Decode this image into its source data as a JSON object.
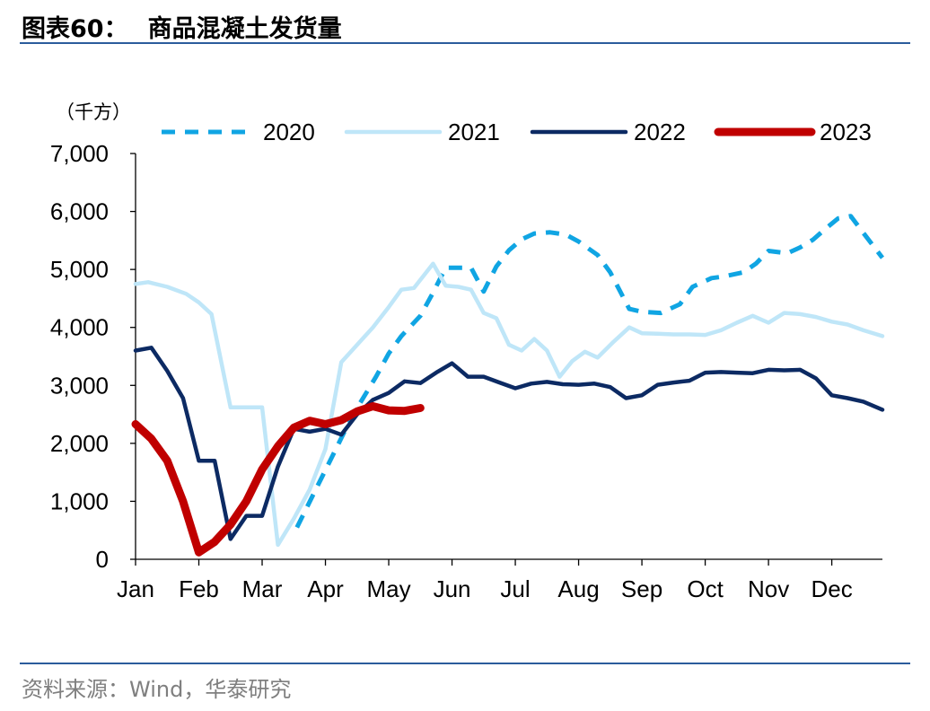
{
  "header": {
    "figure_no": "图表60：",
    "title": "商品混凝土发货量"
  },
  "footer": {
    "source": "资料来源：Wind，华泰研究"
  },
  "colors": {
    "s2020": "#10a5e3",
    "s2021": "#bfe6f8",
    "s2022": "#0c2a63",
    "s2023": "#c00000",
    "rule": "#2b5c9c"
  },
  "chart_data": {
    "type": "line",
    "unit_label": "（千方）",
    "title": "商品混凝土发货量",
    "xlabel": "",
    "ylabel": "",
    "ylim": [
      0,
      7000
    ],
    "yticks": [
      0,
      1000,
      2000,
      3000,
      4000,
      5000,
      6000,
      7000
    ],
    "ytick_labels": [
      "0",
      "1,000",
      "2,000",
      "3,000",
      "4,000",
      "5,000",
      "6,000",
      "7,000"
    ],
    "x_axis": "month",
    "xlim": [
      1,
      12.8
    ],
    "months": [
      "Jan",
      "Feb",
      "Mar",
      "Apr",
      "May",
      "Jun",
      "Jul",
      "Aug",
      "Sep",
      "Oct",
      "Nov",
      "Dec"
    ],
    "legend_position": "top",
    "grid": false,
    "series": [
      {
        "name": "2020",
        "style": "dashed",
        "x": [
          1.7,
          2.0,
          2.5,
          2.8,
          3.1,
          3.3,
          3.55,
          3.8,
          4.05,
          4.3,
          4.55,
          4.8,
          5.0,
          5.2,
          5.5,
          5.7,
          5.9,
          6.1,
          6.3,
          6.5,
          6.7,
          6.9,
          7.1,
          7.3,
          7.55,
          7.8,
          8.0,
          8.3,
          8.5,
          8.8,
          9.0,
          9.3,
          9.6,
          9.8,
          10.1,
          10.3,
          10.6,
          10.8,
          11.0,
          11.3,
          11.5,
          11.7,
          11.9,
          12.1,
          12.3,
          12.5,
          12.8
        ],
        "y": [
          null,
          null,
          null,
          null,
          null,
          null,
          550,
          1100,
          1650,
          2200,
          2700,
          3150,
          3550,
          3850,
          4200,
          4600,
          5030,
          5030,
          5030,
          4620,
          5050,
          5330,
          5520,
          5620,
          5640,
          5600,
          5480,
          5250,
          4950,
          4320,
          4270,
          4250,
          4400,
          4700,
          4850,
          4880,
          4950,
          5100,
          5320,
          5280,
          5380,
          5510,
          5700,
          5880,
          5920,
          5630,
          5200
        ]
      },
      {
        "name": "2021",
        "style": "solid",
        "x": [
          1.0,
          1.2,
          1.5,
          1.8,
          2.0,
          2.2,
          2.5,
          2.75,
          3.0,
          3.25,
          3.5,
          3.75,
          4.0,
          4.25,
          4.5,
          4.75,
          5.0,
          5.2,
          5.4,
          5.7,
          5.9,
          6.1,
          6.3,
          6.5,
          6.7,
          6.9,
          7.1,
          7.3,
          7.5,
          7.7,
          7.9,
          8.1,
          8.3,
          8.55,
          8.8,
          9.0,
          9.25,
          9.5,
          9.75,
          10.0,
          10.25,
          10.5,
          10.75,
          11.0,
          11.25,
          11.5,
          11.75,
          12.0,
          12.25,
          12.5,
          12.8
        ],
        "y": [
          4750,
          4780,
          4700,
          4580,
          4430,
          4230,
          2620,
          2620,
          2620,
          250,
          700,
          1200,
          1900,
          3400,
          3700,
          4000,
          4350,
          4650,
          4680,
          5100,
          4720,
          4700,
          4650,
          4250,
          4160,
          3700,
          3600,
          3800,
          3600,
          3150,
          3420,
          3580,
          3480,
          3750,
          4000,
          3900,
          3890,
          3880,
          3880,
          3870,
          3950,
          4080,
          4200,
          4080,
          4250,
          4230,
          4180,
          4100,
          4050,
          3950,
          3850
        ]
      },
      {
        "name": "2022",
        "style": "solid",
        "x": [
          1.0,
          1.25,
          1.5,
          1.75,
          2.0,
          2.25,
          2.5,
          2.75,
          3.0,
          3.25,
          3.5,
          3.75,
          4.0,
          4.25,
          4.5,
          4.75,
          5.0,
          5.25,
          5.5,
          5.75,
          6.0,
          6.25,
          6.5,
          6.75,
          7.0,
          7.25,
          7.5,
          7.75,
          8.0,
          8.25,
          8.5,
          8.75,
          9.0,
          9.25,
          9.5,
          9.75,
          10.0,
          10.25,
          10.5,
          10.75,
          11.0,
          11.25,
          11.5,
          11.75,
          12.0,
          12.25,
          12.5,
          12.8
        ],
        "y": [
          3600,
          3650,
          3250,
          2780,
          1700,
          1700,
          350,
          750,
          750,
          1600,
          2250,
          2200,
          2250,
          2150,
          2500,
          2750,
          2870,
          3070,
          3040,
          3220,
          3380,
          3150,
          3150,
          3050,
          2950,
          3030,
          3060,
          3020,
          3010,
          3030,
          2970,
          2780,
          2830,
          3010,
          3050,
          3080,
          3220,
          3230,
          3220,
          3210,
          3270,
          3260,
          3270,
          3120,
          2830,
          2780,
          2720,
          2580
        ]
      },
      {
        "name": "2023",
        "style": "thick",
        "x": [
          1.0,
          1.25,
          1.5,
          1.75,
          2.0,
          2.25,
          2.5,
          2.75,
          3.0,
          3.25,
          3.5,
          3.75,
          4.0,
          4.25,
          4.5,
          4.75,
          5.0,
          5.25,
          5.5
        ],
        "y": [
          2330,
          2080,
          1700,
          1000,
          120,
          300,
          600,
          1000,
          1550,
          1950,
          2270,
          2390,
          2330,
          2400,
          2550,
          2640,
          2570,
          2560,
          2610
        ]
      }
    ]
  }
}
